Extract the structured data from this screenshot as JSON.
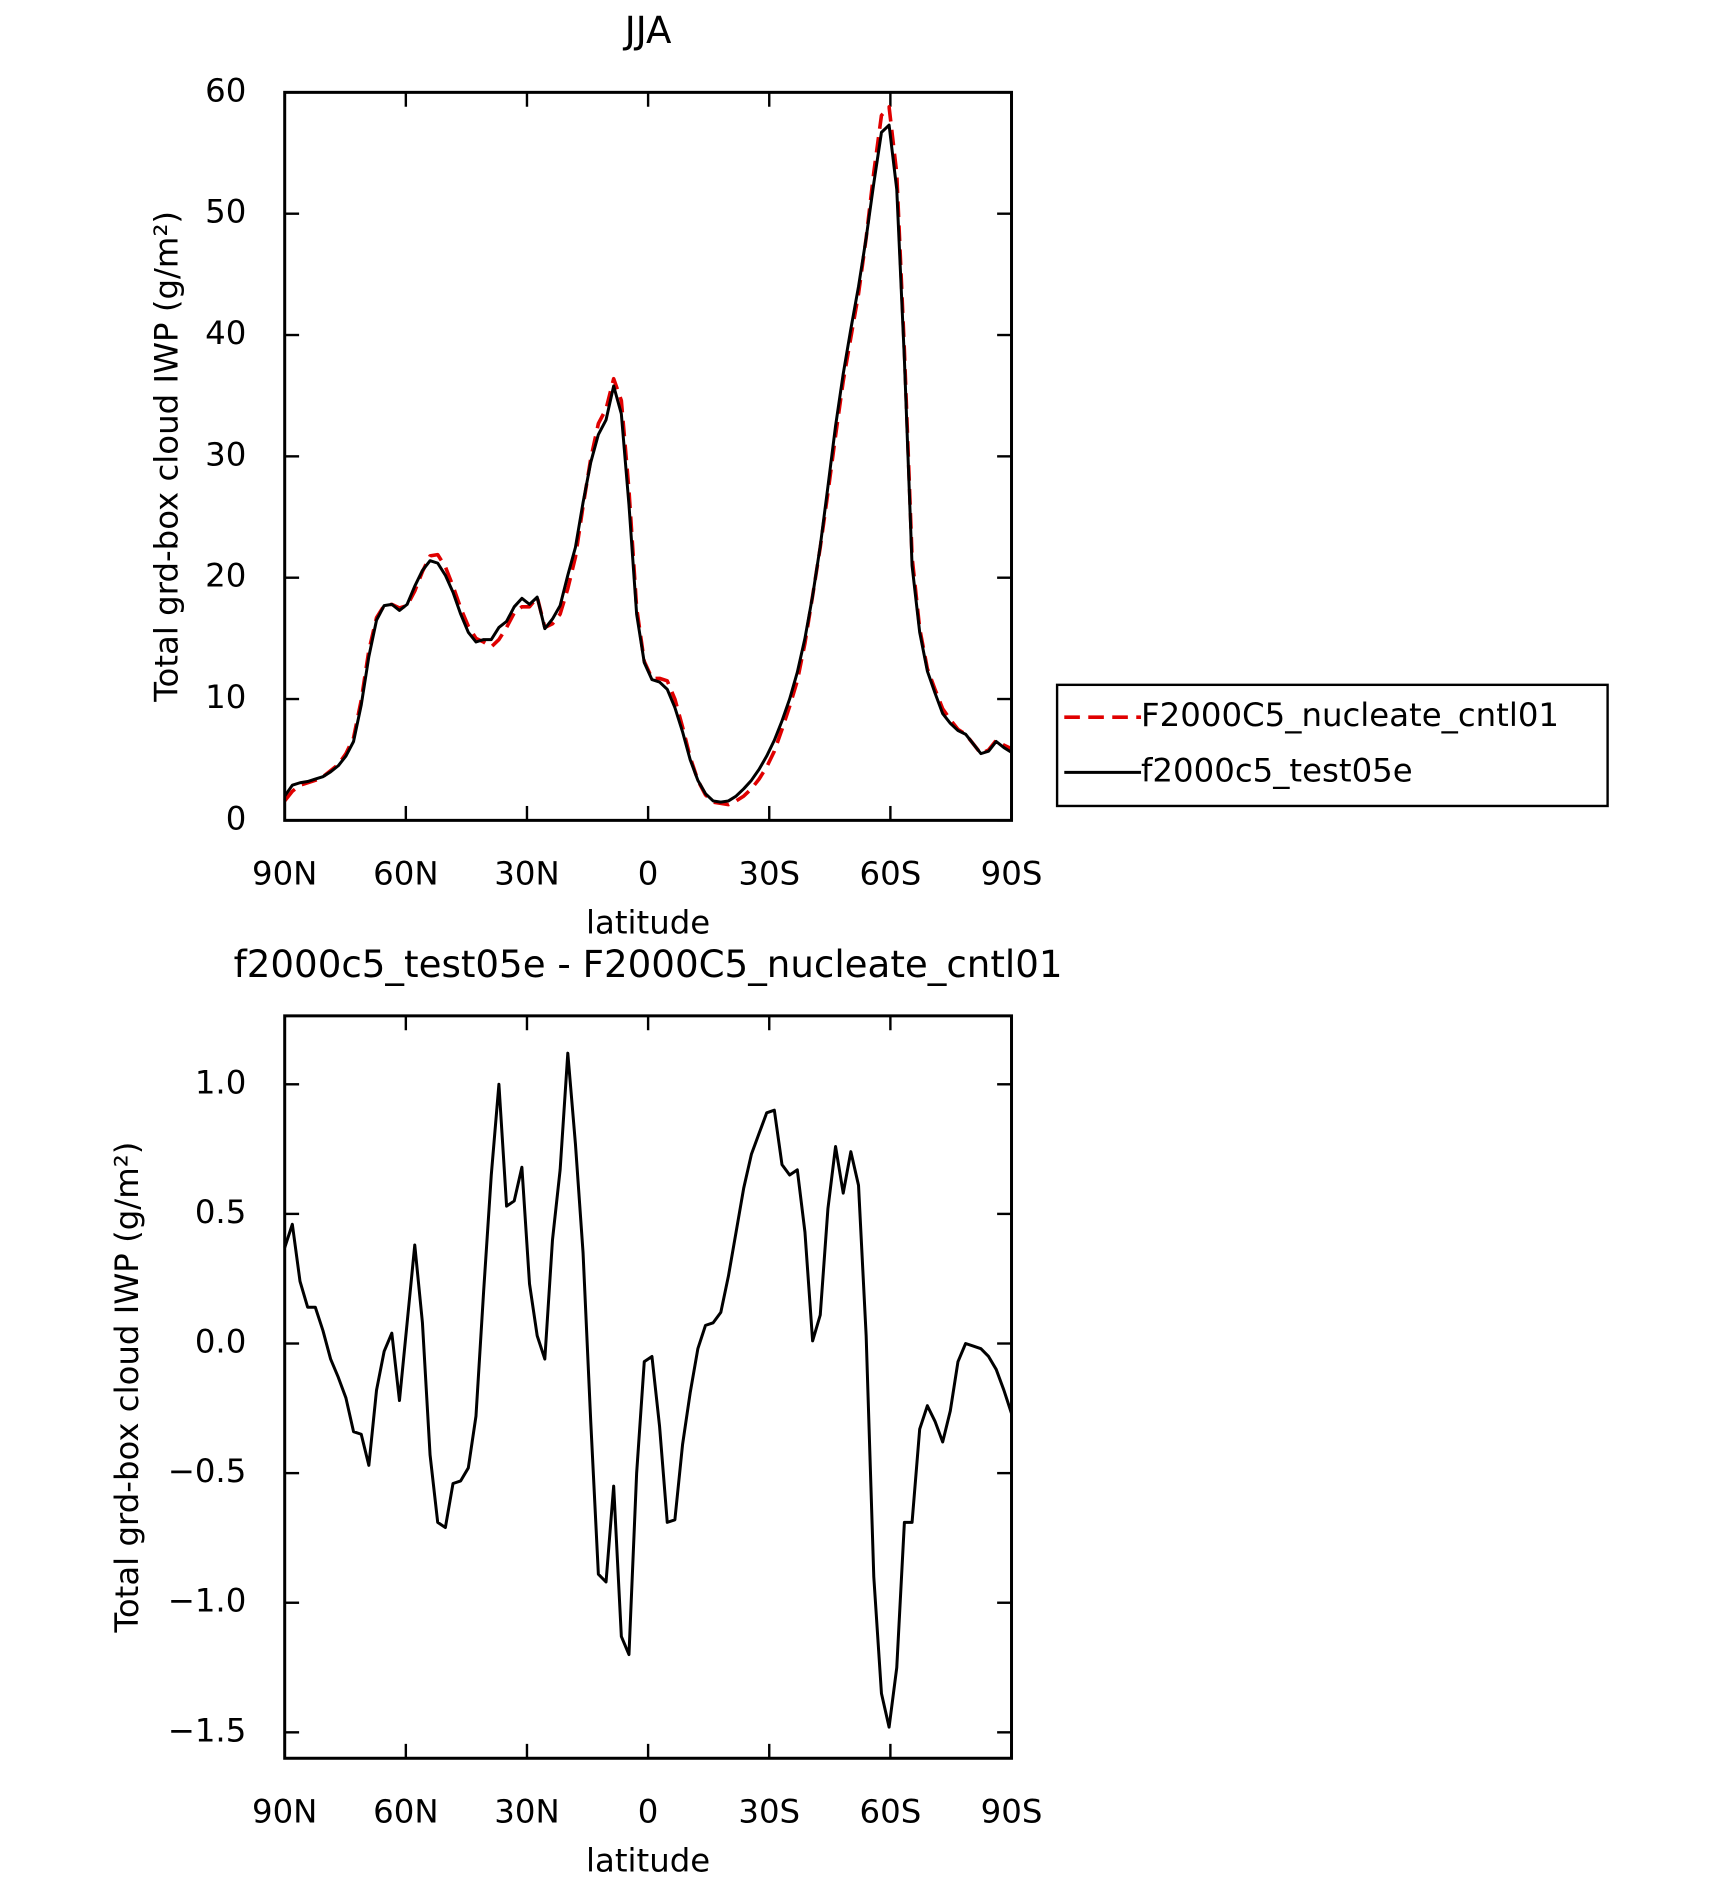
{
  "chart_data": [
    {
      "type": "line",
      "title": "JJA",
      "xlabel": "latitude",
      "ylabel": "Total grd-box cloud IWP (g/m²)",
      "x": [
        90,
        88.11,
        86.21,
        84.32,
        82.42,
        80.53,
        78.63,
        76.74,
        74.84,
        72.95,
        71.05,
        69.16,
        67.26,
        65.37,
        63.47,
        61.58,
        59.68,
        57.79,
        55.89,
        54,
        52.11,
        50.21,
        48.32,
        46.42,
        44.53,
        42.63,
        40.74,
        38.84,
        36.95,
        35.05,
        33.16,
        31.26,
        29.37,
        27.47,
        25.58,
        23.68,
        21.79,
        19.89,
        18,
        16.11,
        14.21,
        12.32,
        10.42,
        8.53,
        6.63,
        4.74,
        2.84,
        0.95,
        -0.95,
        -2.84,
        -4.74,
        -6.63,
        -8.53,
        -10.42,
        -12.32,
        -14.21,
        -16.11,
        -18,
        -19.89,
        -21.79,
        -23.68,
        -25.58,
        -27.47,
        -29.37,
        -31.26,
        -33.16,
        -35.05,
        -36.95,
        -38.84,
        -40.74,
        -42.63,
        -44.53,
        -46.42,
        -48.32,
        -50.21,
        -52.11,
        -54,
        -55.89,
        -57.79,
        -59.68,
        -61.58,
        -63.47,
        -65.37,
        -67.26,
        -69.16,
        -71.05,
        -72.95,
        -74.84,
        -76.74,
        -78.63,
        -80.53,
        -82.42,
        -84.32,
        -86.21,
        -88.11,
        -90
      ],
      "series": [
        {
          "name": "F2000C5_nucleate_cntl01",
          "color": "#e00000",
          "dash": true,
          "values": [
            1.6,
            2.4,
            2.9,
            3.1,
            3.3,
            3.6,
            4.1,
            4.6,
            5.5,
            6.8,
            9.9,
            14.0,
            16.7,
            17.7,
            17.8,
            17.5,
            17.7,
            18.9,
            20.5,
            21.8,
            21.9,
            20.9,
            19.3,
            17.5,
            16.0,
            15.0,
            14.7,
            14.3,
            14.9,
            15.9,
            17.1,
            17.6,
            17.6,
            18.4,
            15.9,
            16.2,
            17.0,
            19.1,
            21.7,
            25.9,
            29.8,
            32.7,
            33.9,
            36.4,
            34.6,
            27.2,
            17.5,
            13.1,
            11.7,
            11.7,
            11.5,
            10.0,
            7.7,
            5.2,
            3.3,
            2.1,
            1.5,
            1.4,
            1.3,
            1.6,
            2.0,
            2.6,
            3.4,
            4.4,
            5.7,
            7.5,
            9.4,
            11.5,
            14.6,
            18.5,
            22.5,
            27.0,
            31.7,
            36.2,
            39.8,
            43.4,
            48.0,
            53.4,
            58.1,
            58.8,
            53.3,
            38.7,
            21.7,
            15.8,
            12.5,
            10.8,
            9.2,
            8.3,
            7.5,
            7.1,
            6.3,
            5.5,
            5.8,
            6.6,
            6.2,
            5.9
          ]
        },
        {
          "name": "f2000c5_test05e",
          "color": "#000000",
          "dash": false,
          "values": [
            2.0,
            2.9,
            3.1,
            3.2,
            3.4,
            3.6,
            4.0,
            4.5,
            5.3,
            6.5,
            9.5,
            13.5,
            16.5,
            17.7,
            17.8,
            17.3,
            17.8,
            19.3,
            20.6,
            21.4,
            21.2,
            20.2,
            18.8,
            17.0,
            15.5,
            14.7,
            14.9,
            14.9,
            15.9,
            16.4,
            17.6,
            18.3,
            17.8,
            18.4,
            15.8,
            16.6,
            17.7,
            20.2,
            22.5,
            26.2,
            29.5,
            31.8,
            33.0,
            35.8,
            33.5,
            26.0,
            17.0,
            13.0,
            11.6,
            11.4,
            10.8,
            9.3,
            7.3,
            5.0,
            3.3,
            2.2,
            1.6,
            1.5,
            1.6,
            2.0,
            2.6,
            3.3,
            4.2,
            5.3,
            6.6,
            8.2,
            10.0,
            12.2,
            15.0,
            18.5,
            22.6,
            27.5,
            32.5,
            36.8,
            40.5,
            44.0,
            48.0,
            52.5,
            56.7,
            57.3,
            52.0,
            38.0,
            21.0,
            15.5,
            12.3,
            10.5,
            8.8,
            8.0,
            7.4,
            7.1,
            6.3,
            5.5,
            5.7,
            6.5,
            6.0,
            5.6
          ]
        }
      ],
      "xlim": [
        90,
        -90
      ],
      "xticks": [
        {
          "value": 90,
          "label": "90N"
        },
        {
          "value": 60,
          "label": "60N"
        },
        {
          "value": 30,
          "label": "30N"
        },
        0,
        {
          "value": -30,
          "label": "30S"
        },
        {
          "value": -60,
          "label": "60S"
        },
        {
          "value": -90,
          "label": "90S"
        }
      ],
      "ylim": [
        0,
        60
      ],
      "yticks": [
        0,
        10,
        20,
        30,
        40,
        50,
        60
      ],
      "legend": "outside right"
    },
    {
      "type": "line",
      "title": "f2000c5_test05e - F2000C5_nucleate_cntl01",
      "xlabel": "latitude",
      "ylabel": "Total grd-box cloud IWP (g/m²)",
      "x": [
        90,
        88.11,
        86.21,
        84.32,
        82.42,
        80.53,
        78.63,
        76.74,
        74.84,
        72.95,
        71.05,
        69.16,
        67.26,
        65.37,
        63.47,
        61.58,
        59.68,
        57.79,
        55.89,
        54,
        52.11,
        50.21,
        48.32,
        46.42,
        44.53,
        42.63,
        40.74,
        38.84,
        36.95,
        35.05,
        33.16,
        31.26,
        29.37,
        27.47,
        25.58,
        23.68,
        21.79,
        19.89,
        18,
        16.11,
        14.21,
        12.32,
        10.42,
        8.53,
        6.63,
        4.74,
        2.84,
        0.95,
        -0.95,
        -2.84,
        -4.74,
        -6.63,
        -8.53,
        -10.42,
        -12.32,
        -14.21,
        -16.11,
        -18,
        -19.89,
        -21.79,
        -23.68,
        -25.58,
        -27.47,
        -29.37,
        -31.26,
        -33.16,
        -35.05,
        -36.95,
        -38.84,
        -40.74,
        -42.63,
        -44.53,
        -46.42,
        -48.32,
        -50.21,
        -52.11,
        -54,
        -55.89,
        -57.79,
        -59.68,
        -61.58,
        -63.47,
        -65.37,
        -67.26,
        -69.16,
        -71.05,
        -72.95,
        -74.84,
        -76.74,
        -78.63,
        -80.53,
        -82.42,
        -84.32,
        -86.21,
        -88.11,
        -90
      ],
      "series": [
        {
          "color": "#000000",
          "dash": false,
          "values": [
            0.37,
            0.46,
            0.24,
            0.14,
            0.14,
            0.05,
            -0.06,
            -0.13,
            -0.21,
            -0.34,
            -0.35,
            -0.47,
            -0.18,
            -0.03,
            0.04,
            -0.22,
            0.08,
            0.38,
            0.08,
            -0.43,
            -0.69,
            -0.71,
            -0.54,
            -0.53,
            -0.48,
            -0.28,
            0.2,
            0.65,
            1.0,
            0.53,
            0.55,
            0.68,
            0.23,
            0.03,
            -0.06,
            0.4,
            0.67,
            1.12,
            0.77,
            0.35,
            -0.3,
            -0.89,
            -0.92,
            -0.55,
            -1.13,
            -1.2,
            -0.5,
            -0.07,
            -0.05,
            -0.32,
            -0.69,
            -0.68,
            -0.39,
            -0.19,
            -0.02,
            0.07,
            0.08,
            0.12,
            0.26,
            0.43,
            0.6,
            0.73,
            0.81,
            0.89,
            0.9,
            0.69,
            0.65,
            0.67,
            0.43,
            0.01,
            0.11,
            0.52,
            0.76,
            0.58,
            0.74,
            0.61,
            0.03,
            -0.9,
            -1.35,
            -1.48,
            -1.25,
            -0.69,
            -0.69,
            -0.33,
            -0.24,
            -0.3,
            -0.38,
            -0.26,
            -0.07,
            0,
            -0.01,
            -0.02,
            -0.05,
            -0.1,
            -0.18,
            -0.27
          ]
        }
      ],
      "xlim": [
        90,
        -90
      ],
      "xticks": [
        {
          "value": 90,
          "label": "90N"
        },
        {
          "value": 60,
          "label": "60N"
        },
        {
          "value": 30,
          "label": "30N"
        },
        0,
        {
          "value": -30,
          "label": "30S"
        },
        {
          "value": -60,
          "label": "60S"
        },
        {
          "value": -90,
          "label": "90S"
        }
      ],
      "ylim": [
        -1.6,
        1.264
      ],
      "yticks": [
        {
          "value": -1.5,
          "label": "−1.5"
        },
        {
          "value": -1,
          "label": "−1.0"
        },
        {
          "value": -0.5,
          "label": "−0.5"
        },
        {
          "value": 0,
          "label": "0.0"
        },
        {
          "value": 0.5,
          "label": "0.5"
        },
        {
          "value": 1,
          "label": "1.0"
        }
      ]
    }
  ]
}
